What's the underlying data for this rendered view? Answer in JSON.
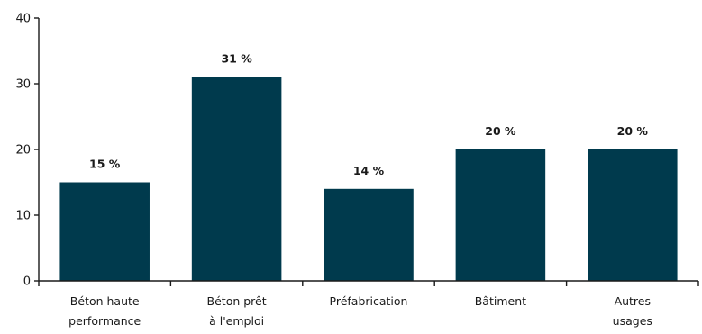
{
  "chart_data": {
    "type": "bar",
    "title": "",
    "xlabel": "",
    "ylabel": "",
    "categories": [
      [
        "Béton haute",
        "performance"
      ],
      [
        "Béton prêt",
        "à l'emploi"
      ],
      [
        "Préfabrication"
      ],
      [
        "Bâtiment"
      ],
      [
        "Autres",
        "usages"
      ]
    ],
    "values": [
      15,
      31,
      14,
      20,
      20
    ],
    "data_labels": [
      "15 %",
      "31 %",
      "14 %",
      "20 %",
      "20 %"
    ],
    "y_ticks": [
      0,
      10,
      20,
      30,
      40
    ],
    "y_tick_labels": [
      "0",
      "10",
      "20",
      "30",
      "40"
    ],
    "ylim": [
      0,
      40
    ],
    "bar_color": "#003a4d",
    "grid": false,
    "legend": "none"
  }
}
